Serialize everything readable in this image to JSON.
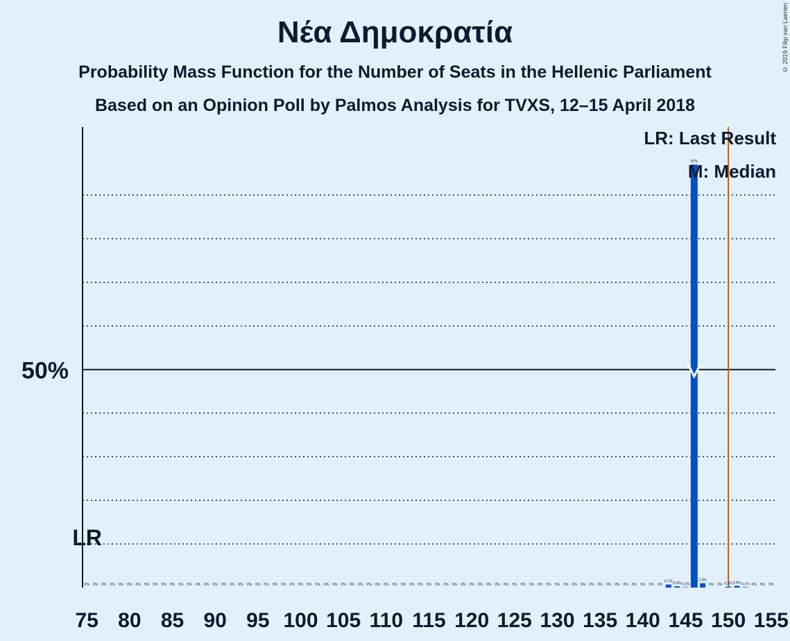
{
  "title": "Νέα Δημοκρατία",
  "subtitle": "Probability Mass Function for the Number of Seats in the Hellenic Parliament",
  "subtitle2": "Based on an Opinion Poll by Palmos Analysis for TVXS, 12–15 April 2018",
  "copyright": "© 2019 Filip van Laenen",
  "legend": {
    "last_result": "LR: Last Result",
    "median": "M: Median"
  },
  "y_axis_label": "50%",
  "lr_axis_label": "LR",
  "colors": {
    "background": "#e3f0fc",
    "bar": "#0050c8",
    "last_result_line": "#b06020",
    "text": "#0f1b2d"
  },
  "chart_data": {
    "type": "bar",
    "x_ticks": [
      75,
      80,
      85,
      90,
      95,
      100,
      105,
      110,
      115,
      120,
      125,
      130,
      135,
      140,
      145,
      150,
      155
    ],
    "x_tick_labels": [
      "75",
      "80",
      "85",
      "90",
      "95",
      "100",
      "105",
      "110",
      "115",
      "120",
      "125",
      "130",
      "135",
      "140",
      "145",
      "150",
      "155"
    ],
    "xlim": [
      75,
      155
    ],
    "ylim": [
      0,
      1.0563
    ],
    "gridlines": [
      0.1,
      0.2,
      0.3,
      0.4,
      0.6,
      0.7,
      0.8,
      0.9
    ],
    "median_line": 0.5,
    "seats": [
      75,
      76,
      77,
      78,
      79,
      80,
      81,
      82,
      83,
      84,
      85,
      86,
      87,
      88,
      89,
      90,
      91,
      92,
      93,
      94,
      95,
      96,
      97,
      98,
      99,
      100,
      101,
      102,
      103,
      104,
      105,
      106,
      107,
      108,
      109,
      110,
      111,
      112,
      113,
      114,
      115,
      116,
      117,
      118,
      119,
      120,
      121,
      122,
      123,
      124,
      125,
      126,
      127,
      128,
      129,
      130,
      131,
      132,
      133,
      134,
      135,
      136,
      137,
      138,
      139,
      140,
      141,
      142,
      143,
      144,
      145,
      146,
      147,
      148,
      149,
      150,
      151,
      152,
      153,
      154,
      155
    ],
    "values": [
      0,
      0,
      0,
      0,
      0,
      0,
      0,
      0,
      0,
      0,
      0,
      0,
      0,
      0,
      0,
      0,
      0,
      0,
      0,
      0,
      0,
      0,
      0,
      0,
      0,
      0,
      0,
      0,
      0,
      0,
      0,
      0,
      0,
      0,
      0,
      0,
      0,
      0,
      0,
      0,
      0,
      0,
      0,
      0,
      0,
      0,
      0,
      0,
      0,
      0,
      0,
      0,
      0,
      0,
      0,
      0,
      0,
      0,
      0,
      0,
      0,
      0,
      0,
      0,
      0,
      0,
      0,
      0,
      0.007,
      0.003,
      0.001,
      0.97,
      0.01,
      0,
      0,
      0.002,
      0.004,
      0.001,
      0,
      0,
      0
    ],
    "value_labels": [
      "0%",
      "0%",
      "0%",
      "0%",
      "0%",
      "0%",
      "0%",
      "0%",
      "0%",
      "0%",
      "0%",
      "0%",
      "0%",
      "0%",
      "0%",
      "0%",
      "0%",
      "0%",
      "0%",
      "0%",
      "0%",
      "0%",
      "0%",
      "0%",
      "0%",
      "0%",
      "0%",
      "0%",
      "0%",
      "0%",
      "0%",
      "0%",
      "0%",
      "0%",
      "0%",
      "0%",
      "0%",
      "0%",
      "0%",
      "0%",
      "0%",
      "0%",
      "0%",
      "0%",
      "0%",
      "0%",
      "0%",
      "0%",
      "0%",
      "0%",
      "0%",
      "0%",
      "0%",
      "0%",
      "0%",
      "0%",
      "0%",
      "0%",
      "0%",
      "0%",
      "0%",
      "0%",
      "0%",
      "0%",
      "0%",
      "0%",
      "0%",
      "0%",
      "0.7%",
      "0.3%",
      "0.1%",
      "97%",
      "1.0%",
      "0%",
      "0%",
      "0.2%",
      "0.4%",
      "0.1%",
      "0%",
      "0%",
      "0%"
    ],
    "median_seat": 146,
    "last_result_seat": 150,
    "lr_axis_position": 0.1
  }
}
